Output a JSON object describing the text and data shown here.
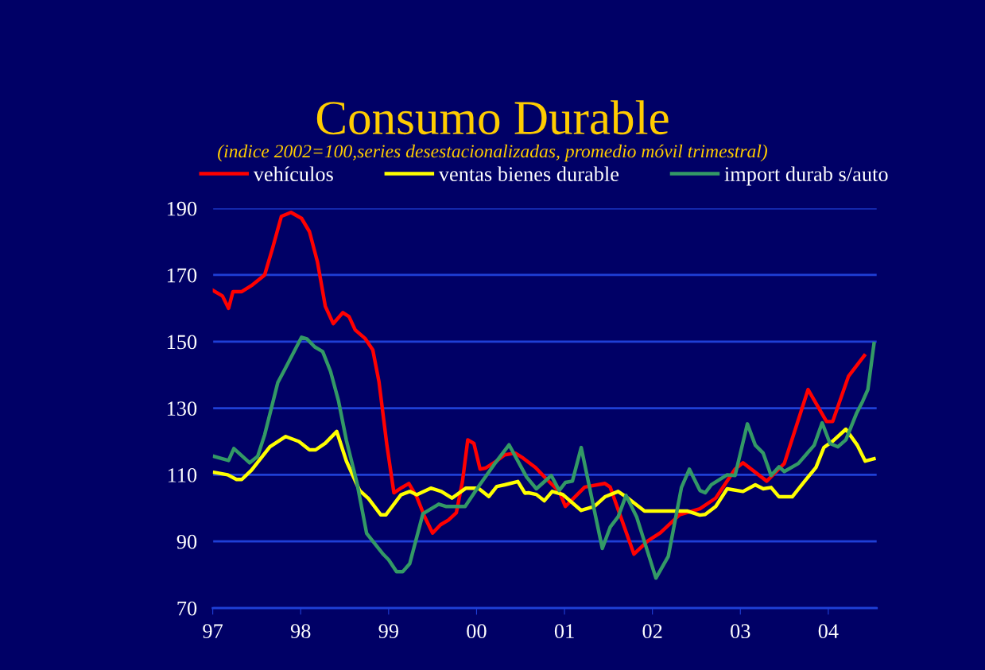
{
  "chart_data": {
    "type": "line",
    "title": "Consumo Durable",
    "subtitle": "(indice 2002=100,series desestacionalizadas, promedio móvil trimestral)",
    "xlim": [
      1997,
      2004.55
    ],
    "xticks": [
      {
        "value": 1997,
        "label": "97"
      },
      {
        "value": 1998,
        "label": "98"
      },
      {
        "value": 1999,
        "label": "99"
      },
      {
        "value": 2000,
        "label": "00"
      },
      {
        "value": 2001,
        "label": "01"
      },
      {
        "value": 2002,
        "label": "02"
      },
      {
        "value": 2003,
        "label": "03"
      },
      {
        "value": 2004,
        "label": "04"
      }
    ],
    "ylim": [
      70,
      190
    ],
    "yticks": [
      70,
      90,
      110,
      130,
      150,
      170,
      190
    ],
    "grid": "y",
    "legend": "top",
    "marker": "none",
    "line_style": "solid",
    "series": [
      {
        "name": "vehículos",
        "color": "#ff0000",
        "x": [
          1997.0,
          1997.11,
          1997.18,
          1997.23,
          1997.33,
          1997.45,
          1997.59,
          1997.68,
          1997.78,
          1997.89,
          1998.01,
          1998.1,
          1998.19,
          1998.28,
          1998.37,
          1998.48,
          1998.55,
          1998.62,
          1998.73,
          1998.82,
          1998.89,
          1998.98,
          1999.06,
          1999.14,
          1999.23,
          1999.32,
          1999.41,
          1999.5,
          1999.59,
          1999.68,
          1999.77,
          1999.84,
          1999.9,
          1999.97,
          2000.04,
          2000.1,
          2000.22,
          2000.32,
          2000.44,
          2000.53,
          2000.67,
          2000.8,
          2000.94,
          2001.01,
          2001.23,
          2001.46,
          2001.52,
          2001.79,
          2001.95,
          2002.09,
          2002.31,
          2002.54,
          2002.72,
          2002.94,
          2003.03,
          2003.3,
          2003.5,
          2003.77,
          2003.98,
          2004.05,
          2004.23,
          2004.41
        ],
        "values": [
          165.4,
          163.7,
          160.0,
          165.0,
          165.0,
          167.0,
          170.0,
          178.0,
          187.6,
          188.8,
          187.0,
          183.0,
          174.0,
          160.6,
          155.4,
          158.7,
          157.5,
          153.5,
          151.0,
          147.5,
          138.0,
          119.0,
          104.6,
          106.0,
          107.4,
          103.4,
          97.4,
          92.5,
          95.0,
          96.4,
          98.6,
          108.0,
          120.5,
          119.4,
          111.7,
          112.0,
          114.0,
          116.0,
          116.5,
          115.0,
          112.2,
          108.6,
          105.0,
          100.5,
          106.3,
          107.4,
          106.3,
          86.2,
          90.2,
          92.6,
          98.0,
          99.8,
          103.0,
          111.7,
          113.6,
          108.1,
          113.4,
          135.6,
          126.0,
          126.0,
          139.6,
          145.8
        ]
      },
      {
        "name": "ventas bienes durable",
        "color": "#ffff00",
        "x": [
          1997.02,
          1997.17,
          1997.27,
          1997.33,
          1997.44,
          1997.65,
          1997.83,
          1997.98,
          1998.1,
          1998.17,
          1998.28,
          1998.41,
          1998.52,
          1998.67,
          1998.77,
          1998.91,
          1998.97,
          1999.14,
          1999.24,
          1999.32,
          1999.48,
          1999.6,
          1999.72,
          1999.88,
          2000.02,
          2000.14,
          2000.23,
          2000.32,
          2000.47,
          2000.55,
          2000.59,
          2000.68,
          2000.77,
          2000.86,
          2000.98,
          2001.19,
          2001.34,
          2001.46,
          2001.61,
          2001.7,
          2001.91,
          2002.24,
          2002.4,
          2002.54,
          2002.6,
          2002.72,
          2002.85,
          2003.03,
          2003.17,
          2003.26,
          2003.35,
          2003.44,
          2003.59,
          2003.71,
          2003.86,
          2003.95,
          2004.05,
          2004.2,
          2004.33,
          2004.42,
          2004.52
        ],
        "values": [
          110.7,
          110.0,
          108.6,
          108.6,
          111.4,
          118.4,
          121.5,
          120.0,
          117.5,
          117.5,
          119.5,
          123.0,
          114.1,
          105.3,
          102.9,
          98.0,
          98.0,
          104.0,
          105.0,
          104.0,
          106.0,
          105.0,
          103.0,
          106.0,
          106.0,
          103.5,
          106.5,
          107.0,
          108.0,
          104.5,
          104.6,
          104.1,
          102.2,
          105.0,
          104.1,
          99.3,
          100.5,
          103.4,
          105.0,
          103.4,
          99.1,
          99.1,
          99.1,
          97.9,
          98.1,
          100.5,
          105.8,
          105.0,
          107.0,
          105.8,
          106.2,
          103.4,
          103.4,
          107.4,
          112.2,
          118.2,
          120.1,
          123.7,
          118.9,
          114.1,
          114.8
        ]
      },
      {
        "name": "import durab s/auto",
        "color": "#339966",
        "x": [
          1997.02,
          1997.18,
          1997.24,
          1997.42,
          1997.51,
          1997.59,
          1997.74,
          1997.83,
          1998.01,
          1998.07,
          1998.16,
          1998.25,
          1998.34,
          1998.43,
          1998.52,
          1998.64,
          1998.75,
          1998.94,
          1999.0,
          1999.09,
          1999.16,
          1999.24,
          1999.39,
          1999.57,
          1999.65,
          1999.87,
          2000.02,
          2000.2,
          2000.37,
          2000.57,
          2000.68,
          2000.85,
          2000.94,
          2001.01,
          2001.09,
          2001.19,
          2001.43,
          2001.52,
          2001.61,
          2001.7,
          2001.82,
          2002.04,
          2002.18,
          2002.33,
          2002.42,
          2002.54,
          2002.6,
          2002.67,
          2002.85,
          2002.94,
          2003.08,
          2003.17,
          2003.26,
          2003.35,
          2003.44,
          2003.5,
          2003.66,
          2003.84,
          2003.93,
          2004.02,
          2004.11,
          2004.2,
          2004.32,
          2004.39,
          2004.45,
          2004.52
        ],
        "values": [
          115.5,
          114.3,
          117.9,
          113.6,
          115.5,
          122.0,
          137.7,
          142.2,
          151.3,
          150.8,
          148.4,
          147.0,
          141.0,
          132.2,
          120.3,
          107.6,
          92.4,
          86.1,
          84.5,
          80.9,
          80.9,
          83.3,
          98.3,
          101.2,
          100.5,
          100.5,
          106.4,
          113.1,
          119.0,
          109.3,
          105.8,
          109.8,
          105.3,
          107.7,
          108.1,
          118.2,
          87.9,
          94.3,
          97.4,
          103.8,
          97.4,
          79.0,
          85.5,
          106.2,
          111.7,
          105.3,
          104.6,
          107.0,
          110.0,
          109.8,
          125.3,
          118.9,
          116.5,
          109.8,
          112.4,
          111.0,
          113.4,
          118.9,
          125.6,
          119.4,
          118.4,
          120.5,
          128.4,
          132.0,
          135.6,
          149.4
        ]
      }
    ]
  }
}
